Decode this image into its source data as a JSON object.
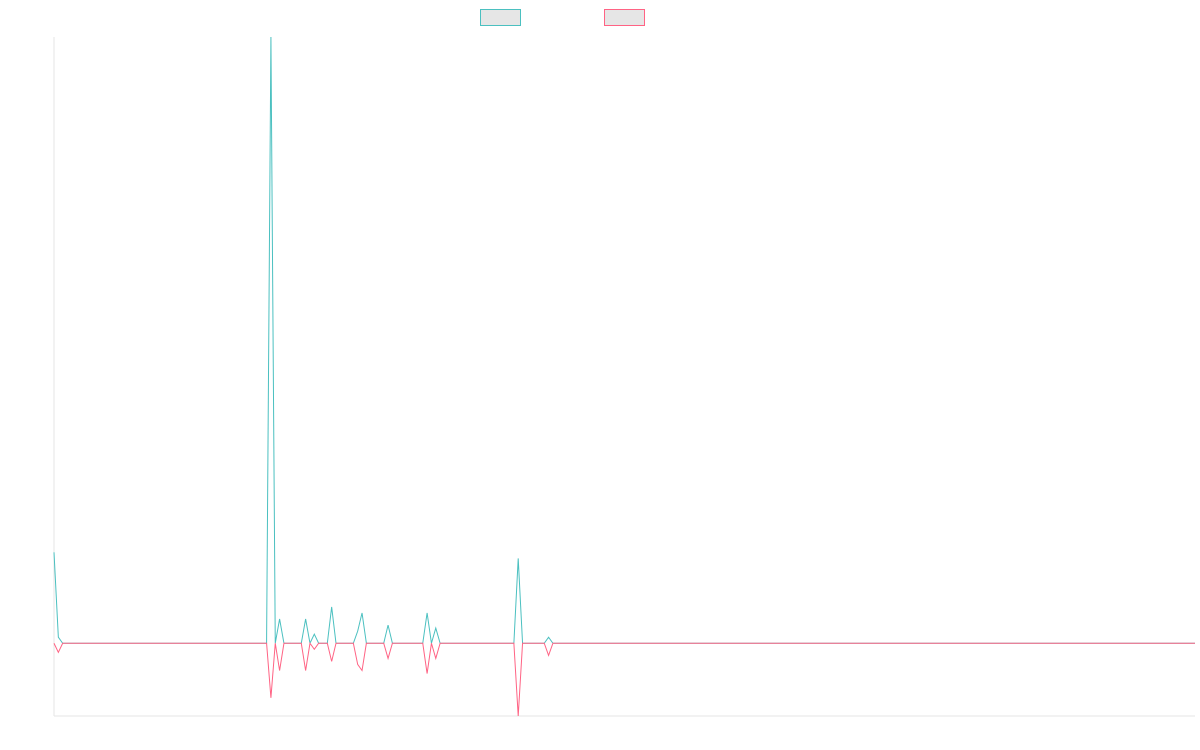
{
  "chart_data": {
    "type": "line",
    "xlim": [
      0,
      263
    ],
    "ylim": [
      -12,
      100
    ],
    "series": [
      {
        "color": "#4bc0c0",
        "x": [
          0,
          1,
          2,
          49,
          50,
          51,
          52,
          53,
          57,
          58,
          59,
          60,
          61,
          63,
          64,
          65,
          69,
          70,
          71,
          72,
          76,
          77,
          78,
          85,
          86,
          87,
          88,
          89,
          106,
          107,
          108,
          113,
          114,
          115,
          263
        ],
        "values": [
          15,
          1,
          0,
          0,
          100,
          0,
          4,
          0,
          0,
          4,
          0,
          1.5,
          0,
          0,
          6,
          0,
          0,
          2,
          5,
          0,
          0,
          3,
          0,
          0,
          5,
          0,
          2.5,
          0,
          0,
          14,
          0,
          0,
          1,
          0,
          0
        ]
      },
      {
        "color": "#ff6384",
        "x": [
          0,
          1,
          2,
          49,
          50,
          51,
          52,
          53,
          57,
          58,
          59,
          60,
          61,
          63,
          64,
          65,
          69,
          70,
          71,
          72,
          76,
          77,
          78,
          85,
          86,
          87,
          88,
          89,
          106,
          107,
          108,
          113,
          114,
          115,
          263
        ],
        "values": [
          0,
          -1.5,
          0,
          0,
          -9,
          0,
          -4.5,
          0,
          0,
          -4.5,
          0,
          -1,
          0,
          0,
          -3,
          0,
          0,
          -3.5,
          -4.5,
          0,
          0,
          -2.5,
          0,
          0,
          -5,
          0,
          -2.5,
          0,
          0,
          -12,
          0,
          0,
          -2,
          0,
          0
        ]
      }
    ]
  }
}
